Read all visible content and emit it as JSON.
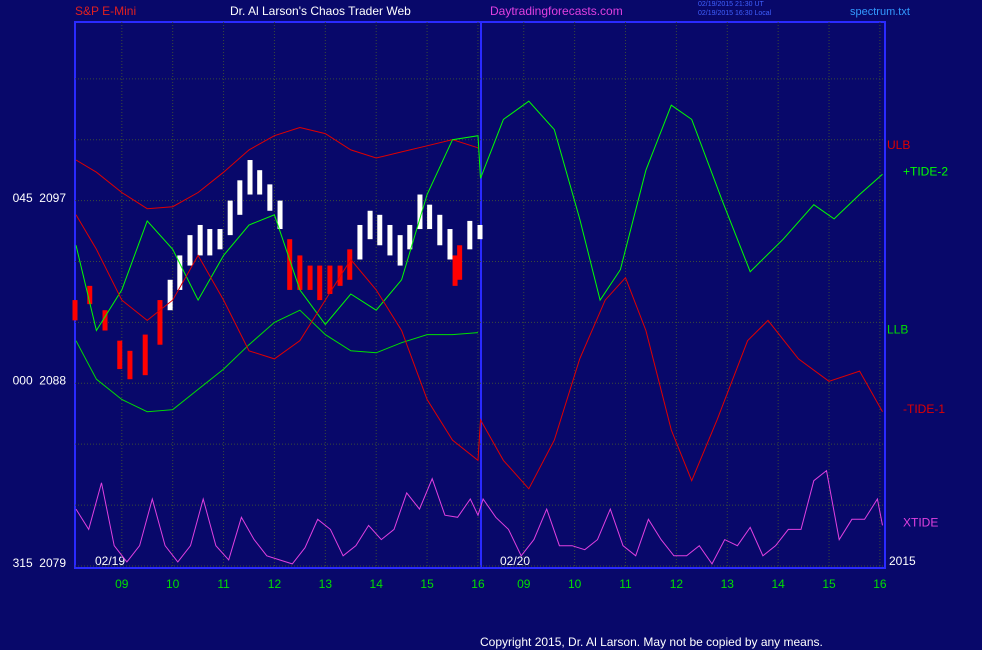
{
  "header": {
    "instrument": "S&P E-Mini",
    "title": "Dr. Al Larson's Chaos Trader Web",
    "site": "Daytradingforecasts.com",
    "stamp_ut": "02/19/2015 21:30 UT",
    "stamp_local": "02/19/2015 16:30 Local",
    "file": "spectrum.txt",
    "date1": "02/19",
    "date2": "02/20",
    "year": "2015",
    "copyright": "Copyright 2015, Dr. Al Larson. May not be copied by any means."
  },
  "chart_data": {
    "type": "line",
    "xlim": [
      8.08,
      24.0
    ],
    "ylim": [
      2078.9,
      2105.8
    ],
    "xticks": [
      {
        "value": 9,
        "label": "09"
      },
      10,
      11,
      12,
      13,
      14,
      15,
      16,
      {
        "value": 16.9,
        "label": "09"
      },
      {
        "value": 17.9,
        "label": "10"
      },
      {
        "value": 18.9,
        "label": "11"
      },
      {
        "value": 19.9,
        "label": "12"
      },
      {
        "value": 20.9,
        "label": "13"
      },
      {
        "value": 21.9,
        "label": "14"
      },
      {
        "value": 22.9,
        "label": "15"
      },
      {
        "value": 23.9,
        "label": "16"
      }
    ],
    "yticks": [
      {
        "value": 2079,
        "label": "315  2079"
      },
      {
        "value": 2088,
        "label": "000  2088"
      },
      {
        "value": 2097,
        "label": "045  2097"
      }
    ],
    "minor_yticks": [
      2082,
      2085,
      2091,
      2094,
      2100,
      2103
    ],
    "grid": true,
    "series": [
      {
        "name": "ULB",
        "color": "#e00000",
        "x": [
          8.1,
          8.5,
          9,
          9.5,
          10,
          10.5,
          11,
          11.5,
          12,
          12.5,
          13,
          13.5,
          14,
          14.5,
          15,
          15.5,
          16
        ],
        "values": [
          2099.0,
          2098.4,
          2097.4,
          2096.6,
          2096.7,
          2097.4,
          2098.4,
          2099.5,
          2100.2,
          2100.6,
          2100.3,
          2099.5,
          2099.1,
          2099.4,
          2099.7,
          2100.0,
          2099.6
        ]
      },
      {
        "name": "+TIDE-2",
        "color": "#00ff00",
        "x": [
          8.1,
          8.5,
          9,
          9.5,
          10,
          10.5,
          11,
          11.5,
          12,
          12.5,
          13,
          13.5,
          14,
          14.5,
          15,
          15.5,
          16,
          16.05,
          16.5,
          17,
          17.5,
          18,
          18.4,
          18.8,
          19.3,
          19.8,
          20.2,
          20.8,
          21.35,
          22,
          22.6,
          23,
          23.5,
          23.95
        ],
        "values": [
          2094.8,
          2090.6,
          2092.6,
          2096.0,
          2094.6,
          2092.1,
          2094.3,
          2095.8,
          2096.3,
          2092.6,
          2090.9,
          2092.4,
          2091.6,
          2093.1,
          2097.3,
          2100.0,
          2100.2,
          2098.1,
          2101.0,
          2101.9,
          2100.5,
          2096.1,
          2092.1,
          2093.6,
          2098.5,
          2101.7,
          2101.0,
          2097.0,
          2093.5,
          2095.1,
          2096.8,
          2096.1,
          2097.3,
          2098.3
        ]
      },
      {
        "name": "LLB",
        "color": "#00e000",
        "x": [
          8.1,
          8.5,
          9,
          9.5,
          10,
          10.5,
          11,
          11.5,
          12,
          12.5,
          13,
          13.5,
          14,
          14.5,
          15,
          15.5,
          16
        ],
        "values": [
          2090.1,
          2088.2,
          2087.2,
          2086.6,
          2086.7,
          2087.7,
          2088.7,
          2089.9,
          2091.0,
          2091.6,
          2090.4,
          2089.6,
          2089.5,
          2090.0,
          2090.4,
          2090.4,
          2090.5
        ]
      },
      {
        "name": "-TIDE-1",
        "color": "#e00000",
        "x": [
          8.1,
          8.5,
          9,
          9.5,
          10,
          10.5,
          11,
          11.5,
          12,
          12.5,
          13,
          13.5,
          14,
          14.5,
          15,
          15.5,
          16,
          16.05,
          16.5,
          17,
          17.5,
          18,
          18.5,
          18.9,
          19.3,
          19.8,
          20.2,
          20.7,
          21.3,
          21.7,
          22.3,
          22.9,
          23.5,
          23.95
        ],
        "values": [
          2096.3,
          2094.6,
          2092.1,
          2091.1,
          2092.1,
          2094.3,
          2092.1,
          2089.6,
          2089.2,
          2090.1,
          2092.1,
          2094.1,
          2092.6,
          2090.6,
          2087.2,
          2085.2,
          2084.2,
          2086.2,
          2084.2,
          2082.8,
          2085.2,
          2089.2,
          2092.1,
          2093.2,
          2090.6,
          2085.7,
          2083.2,
          2086.2,
          2090.1,
          2091.1,
          2089.2,
          2088.1,
          2088.6,
          2086.6
        ]
      },
      {
        "name": "XTIDE",
        "color": "#e040e0",
        "x": [
          8.1,
          8.35,
          8.6,
          8.85,
          9.1,
          9.35,
          9.6,
          9.85,
          10.1,
          10.35,
          10.6,
          10.85,
          11.1,
          11.35,
          11.6,
          11.85,
          12.1,
          12.35,
          12.6,
          12.85,
          13.1,
          13.35,
          13.6,
          13.85,
          14.1,
          14.35,
          14.6,
          14.85,
          15.1,
          15.35,
          15.6,
          15.85,
          16,
          16.1,
          16.35,
          16.6,
          16.85,
          17.1,
          17.35,
          17.6,
          17.85,
          18.1,
          18.35,
          18.6,
          18.85,
          19.1,
          19.35,
          19.6,
          19.85,
          20.1,
          20.35,
          20.6,
          20.85,
          21.1,
          21.35,
          21.6,
          21.85,
          22.1,
          22.35,
          22.6,
          22.85,
          23.1,
          23.35,
          23.6,
          23.85,
          23.95
        ],
        "values": [
          2081.8,
          2080.8,
          2083.1,
          2080.0,
          2079.2,
          2080.0,
          2082.3,
          2080.0,
          2079.2,
          2080.0,
          2082.3,
          2080.0,
          2079.3,
          2081.4,
          2080.3,
          2079.5,
          2079.3,
          2079.1,
          2079.9,
          2081.3,
          2080.8,
          2079.5,
          2080.0,
          2081.0,
          2080.3,
          2080.8,
          2082.6,
          2081.8,
          2083.3,
          2081.5,
          2081.4,
          2082.3,
          2081.5,
          2082.3,
          2081.4,
          2080.8,
          2079.5,
          2080.3,
          2081.8,
          2080.0,
          2080.0,
          2079.8,
          2080.3,
          2081.8,
          2080.0,
          2079.5,
          2081.3,
          2080.3,
          2079.5,
          2079.5,
          2080.0,
          2079.1,
          2080.3,
          2080.0,
          2080.9,
          2079.5,
          2080.0,
          2080.8,
          2080.8,
          2083.2,
          2083.7,
          2080.3,
          2081.3,
          2081.3,
          2082.3,
          2081.0
        ]
      }
    ],
    "bars": {
      "x": [
        8.08,
        8.37,
        8.67,
        8.96,
        9.16,
        9.46,
        9.75,
        9.95,
        10.14,
        10.34,
        10.54,
        10.73,
        10.93,
        11.13,
        11.32,
        11.52,
        11.71,
        11.91,
        12.11,
        12.3,
        12.5,
        12.7,
        12.89,
        13.09,
        13.29,
        13.48,
        13.68,
        13.88,
        14.07,
        14.27,
        14.47,
        14.66,
        14.86,
        15.05,
        15.25,
        15.45,
        15.55,
        15.64,
        15.84,
        16.04
      ],
      "high": [
        2092.1,
        2092.8,
        2091.6,
        2090.1,
        2089.6,
        2090.4,
        2092.1,
        2093.1,
        2094.3,
        2095.3,
        2095.8,
        2095.6,
        2095.6,
        2097.0,
        2098.0,
        2099.0,
        2098.5,
        2097.8,
        2097.0,
        2095.1,
        2094.3,
        2093.8,
        2093.8,
        2093.8,
        2093.8,
        2094.6,
        2095.8,
        2096.5,
        2096.3,
        2095.8,
        2095.3,
        2095.8,
        2097.3,
        2096.8,
        2096.3,
        2095.6,
        2094.3,
        2094.8,
        2096.0,
        2095.8
      ],
      "low": [
        2091.1,
        2091.9,
        2090.6,
        2088.7,
        2088.2,
        2088.4,
        2089.9,
        2091.6,
        2092.6,
        2093.8,
        2094.3,
        2094.3,
        2094.6,
        2095.3,
        2096.3,
        2097.3,
        2097.3,
        2096.5,
        2095.6,
        2092.6,
        2092.6,
        2092.6,
        2092.1,
        2092.4,
        2092.8,
        2093.1,
        2094.1,
        2095.1,
        2094.8,
        2094.3,
        2093.8,
        2094.6,
        2095.6,
        2095.6,
        2094.8,
        2094.1,
        2092.8,
        2093.1,
        2094.6,
        2095.1
      ],
      "colors": [
        "#ff0000",
        "#ff0000",
        "#ff0000",
        "#ff0000",
        "#ff0000",
        "#ff0000",
        "#ff0000",
        "#ffffff",
        "#ffffff",
        "#ffffff",
        "#ffffff",
        "#ffffff",
        "#ffffff",
        "#ffffff",
        "#ffffff",
        "#ffffff",
        "#ffffff",
        "#ffffff",
        "#ffffff",
        "#ff0000",
        "#ff0000",
        "#ff0000",
        "#ff0000",
        "#ff0000",
        "#ff0000",
        "#ff0000",
        "#ffffff",
        "#ffffff",
        "#ffffff",
        "#ffffff",
        "#ffffff",
        "#ffffff",
        "#ffffff",
        "#ffffff",
        "#ffffff",
        "#ffffff",
        "#ff0000",
        "#ff0000",
        "#ffffff",
        "#ffffff"
      ]
    }
  }
}
